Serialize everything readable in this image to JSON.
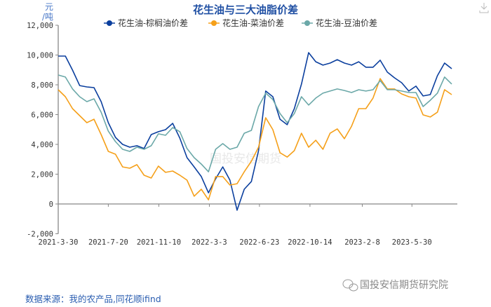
{
  "chart_data": {
    "type": "line",
    "title": "花生油与三大油脂价差",
    "ylabel": "元/吨",
    "ylim": [
      -2000,
      12000
    ],
    "yticks": [
      "12,000",
      "10,000",
      "8,000",
      "6,000",
      "4,000",
      "2,000",
      "0",
      "-2,000"
    ],
    "ytick_values": [
      12000,
      10000,
      8000,
      6000,
      4000,
      2000,
      0,
      -2000
    ],
    "xticks": [
      "2021-3-30",
      "2021-7-20",
      "2021-11-10",
      "2022-3-3",
      "2022-6-23",
      "2022-10-14",
      "2023-2-8",
      "2023-5-30"
    ],
    "xtick_dates": [
      "2021-03-30",
      "2021-07-20",
      "2021-11-10",
      "2022-03-03",
      "2022-06-23",
      "2022-10-14",
      "2023-02-08",
      "2023-05-30"
    ],
    "legend_position": "top",
    "grid": false,
    "x": [
      "2021-03-30",
      "2021-04-15",
      "2021-05-01",
      "2021-05-17",
      "2021-06-02",
      "2021-06-18",
      "2021-07-04",
      "2021-07-20",
      "2021-08-05",
      "2021-08-21",
      "2021-09-06",
      "2021-09-22",
      "2021-10-08",
      "2021-10-24",
      "2021-11-09",
      "2021-11-25",
      "2021-12-11",
      "2021-12-27",
      "2022-01-12",
      "2022-01-28",
      "2022-02-13",
      "2022-03-01",
      "2022-03-17",
      "2022-04-02",
      "2022-04-18",
      "2022-05-04",
      "2022-05-20",
      "2022-06-05",
      "2022-06-21",
      "2022-07-07",
      "2022-07-23",
      "2022-08-08",
      "2022-08-24",
      "2022-09-09",
      "2022-09-25",
      "2022-10-11",
      "2022-10-27",
      "2022-11-12",
      "2022-11-28",
      "2022-12-14",
      "2022-12-30",
      "2023-01-15",
      "2023-01-31",
      "2023-02-16",
      "2023-03-04",
      "2023-03-20",
      "2023-04-05",
      "2023-04-21",
      "2023-05-07",
      "2023-05-23",
      "2023-06-08",
      "2023-06-24",
      "2023-07-10",
      "2023-07-26",
      "2023-08-11",
      "2023-08-27"
    ],
    "series": [
      {
        "name": "花生油-棕榈油价差",
        "color": "#0b3f9e",
        "values": [
          9930,
          9930,
          8990,
          7950,
          7860,
          7810,
          6870,
          5460,
          4470,
          4000,
          3810,
          3910,
          3720,
          4660,
          4850,
          4990,
          5410,
          4420,
          3110,
          2490,
          1840,
          750,
          1690,
          2490,
          1600,
          -420,
          990,
          1510,
          3580,
          7580,
          7200,
          5690,
          5320,
          6400,
          8050,
          10160,
          9550,
          9320,
          9460,
          9690,
          9460,
          9320,
          9550,
          9180,
          9180,
          9650,
          8850,
          8470,
          8140,
          7580,
          7910,
          7250,
          7340,
          8610,
          9460,
          9080
        ]
      },
      {
        "name": "花生油-菜油价差",
        "color": "#f5a01a",
        "values": [
          7670,
          7200,
          6400,
          5930,
          5460,
          5690,
          4660,
          3530,
          3340,
          2490,
          2400,
          2640,
          1930,
          1740,
          2540,
          2120,
          2210,
          1930,
          1600,
          520,
          990,
          280,
          1840,
          1840,
          1270,
          1360,
          2160,
          2870,
          3810,
          5790,
          4990,
          3440,
          3150,
          3580,
          4750,
          3810,
          4280,
          3670,
          4750,
          5040,
          4380,
          5220,
          6400,
          6400,
          7110,
          8420,
          7720,
          7720,
          7390,
          7200,
          7110,
          5980,
          5840,
          6160,
          7670,
          7340
        ]
      },
      {
        "name": "花生油-豆油价差",
        "color": "#6ba8a8",
        "values": [
          8660,
          8520,
          7720,
          7200,
          6870,
          7060,
          6160,
          4890,
          4190,
          3670,
          3530,
          3810,
          3670,
          3910,
          4710,
          4610,
          5130,
          4850,
          3720,
          3110,
          2680,
          2160,
          3670,
          4050,
          3670,
          3810,
          4750,
          4940,
          6540,
          7440,
          7010,
          6070,
          5460,
          6070,
          7200,
          6640,
          7110,
          7440,
          7580,
          7720,
          7620,
          7480,
          7670,
          7580,
          7670,
          8280,
          7670,
          7670,
          7580,
          7480,
          7480,
          6540,
          6960,
          7440,
          8520,
          8050
        ]
      }
    ]
  },
  "source": "数据来源：我的农产品,同花顺ifind",
  "watermark": "国投安信期货研究院",
  "chart_watermark": "国投安信期货"
}
